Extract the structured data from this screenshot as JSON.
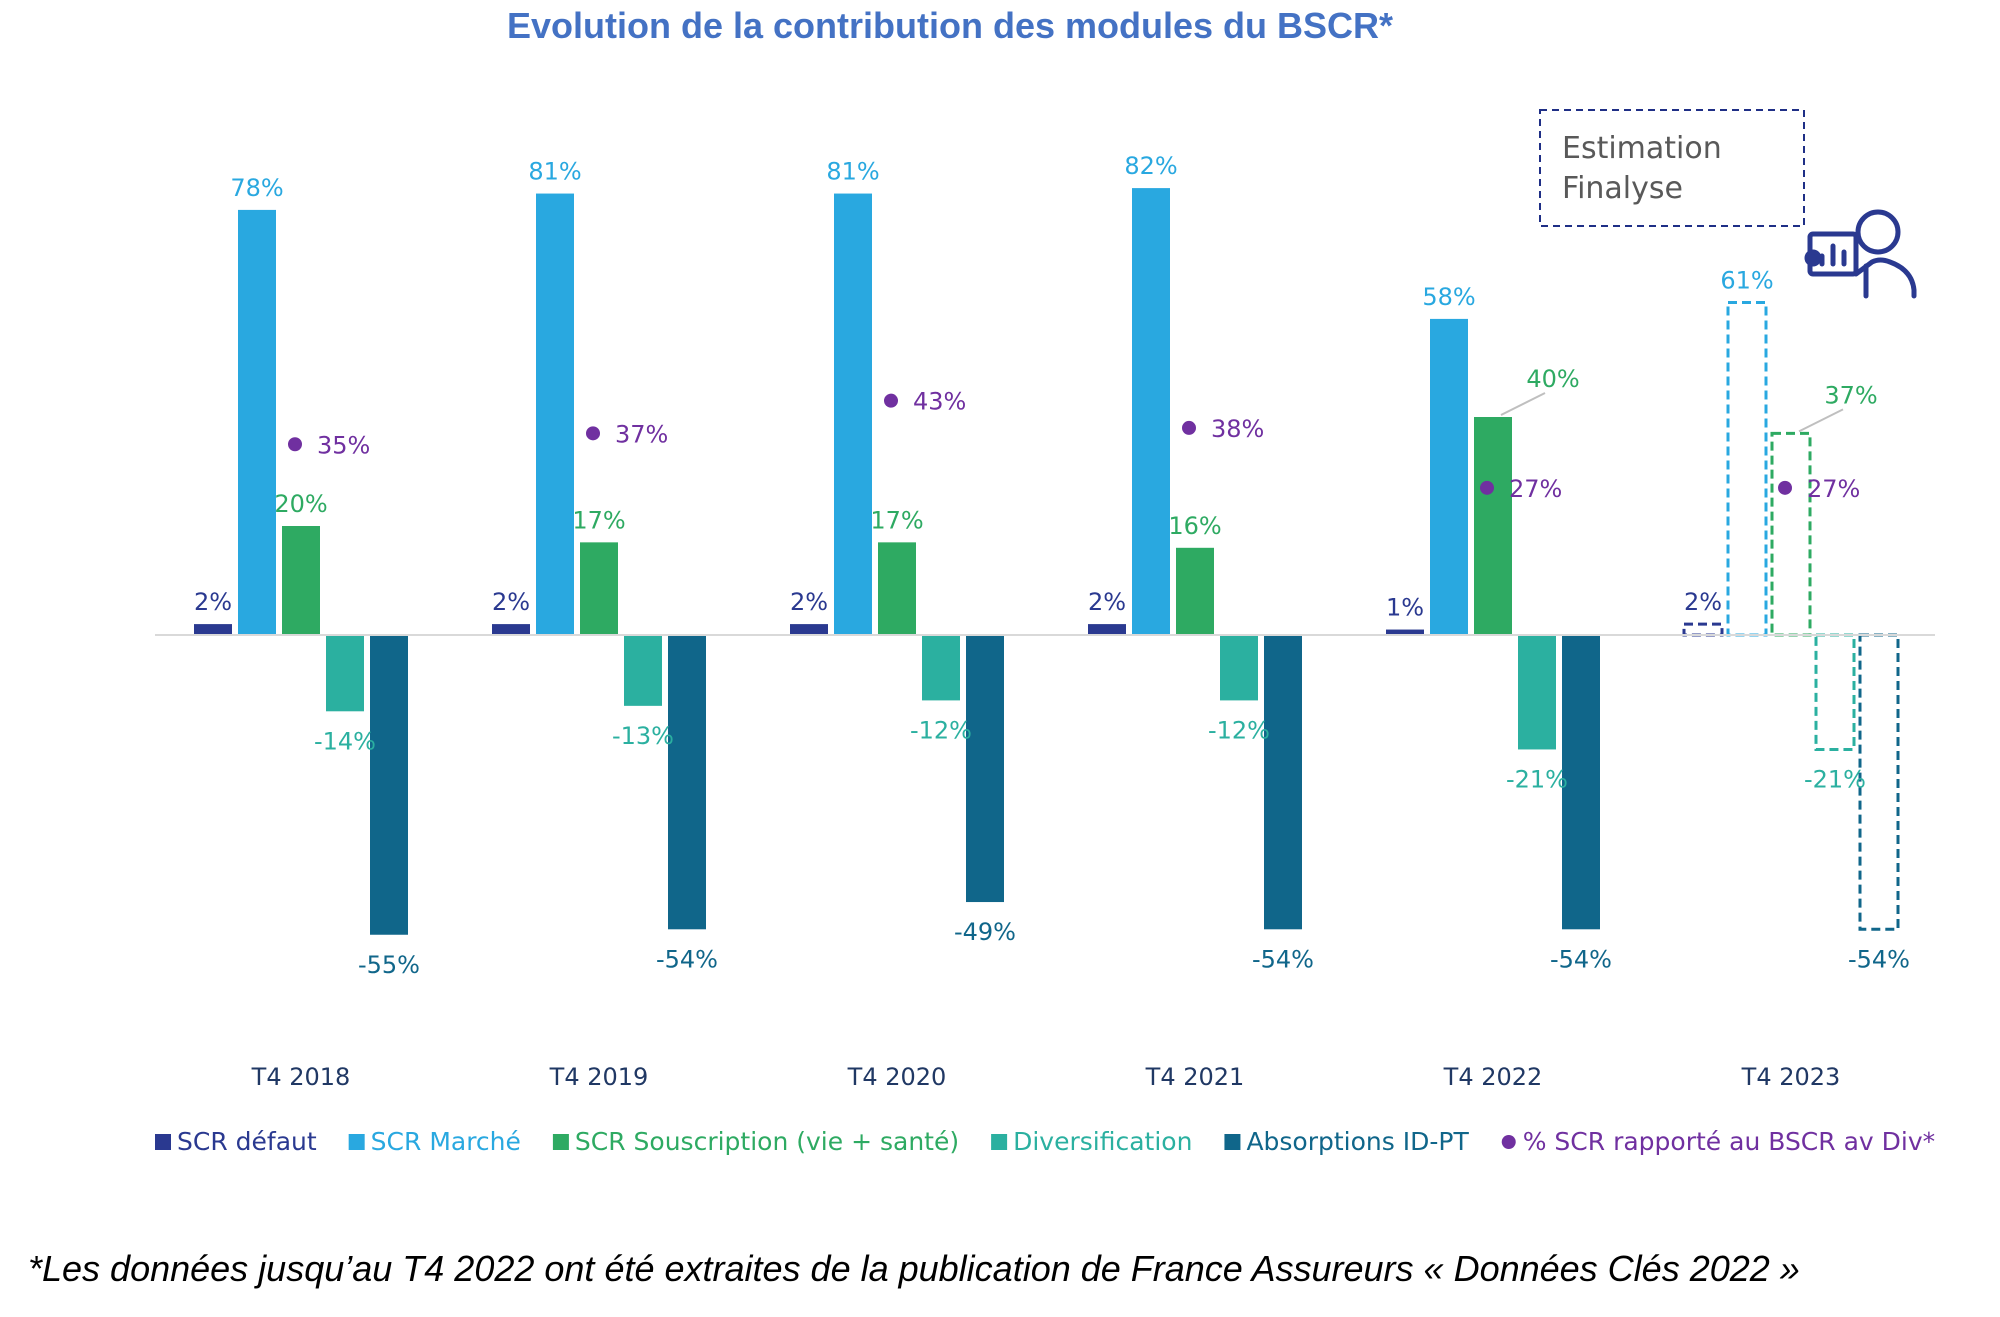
{
  "chart_data": {
    "type": "bar",
    "title": "Evolution de la contribution des modules du BSCR*",
    "categories": [
      "T4 2018",
      "T4 2019",
      "T4 2020",
      "T4 2021",
      "T4 2022",
      "T4 2023"
    ],
    "ylim": [
      -60,
      90
    ],
    "grid": false,
    "legend_position": "bottom",
    "estimated_categories": [
      "T4 2023"
    ],
    "series": [
      {
        "name": "SCR défaut",
        "color": "#2a3990",
        "values": [
          2,
          2,
          2,
          2,
          1,
          2
        ],
        "labels": [
          "2%",
          "2%",
          "2%",
          "2%",
          "1%",
          "2%"
        ]
      },
      {
        "name": "SCR Marché",
        "color": "#29a8e0",
        "values": [
          78,
          81,
          81,
          82,
          58,
          61
        ],
        "labels": [
          "78%",
          "81%",
          "81%",
          "82%",
          "58%",
          "61%"
        ]
      },
      {
        "name": "SCR Souscription (vie + santé)",
        "color": "#2eaa62",
        "values": [
          20,
          17,
          17,
          16,
          40,
          37
        ],
        "labels": [
          "20%",
          "17%",
          "17%",
          "16%",
          "40%",
          "37%"
        ]
      },
      {
        "name": "Diversification",
        "color": "#2bb0a0",
        "values": [
          -14,
          -13,
          -12,
          -12,
          -21,
          -21
        ],
        "labels": [
          "-14%",
          "-13%",
          "-12%",
          "-12%",
          "-21%",
          "-21%"
        ]
      },
      {
        "name": "Absorptions ID-PT",
        "color": "#10668a",
        "values": [
          -55,
          -54,
          -49,
          -54,
          -54,
          -54
        ],
        "labels": [
          "-55%",
          "-54%",
          "-49%",
          "-54%",
          "-54%",
          "-54%"
        ]
      }
    ],
    "scatter_series": {
      "name": "% SCR rapporté au BSCR av Div*",
      "color": "#7030a0",
      "values": [
        35,
        37,
        43,
        38,
        27,
        27
      ],
      "labels": [
        "35%",
        "37%",
        "43%",
        "38%",
        "27%",
        "27%"
      ]
    }
  },
  "legend_box": {
    "line1": "Estimation",
    "line2": "Finalyse"
  },
  "footnote": "*Les données jusqu’au T4 2022 ont été extraites de la publication de France Assureurs « Données Clés 2022 »",
  "icons": {
    "presenter": "presenter-chart-icon"
  }
}
